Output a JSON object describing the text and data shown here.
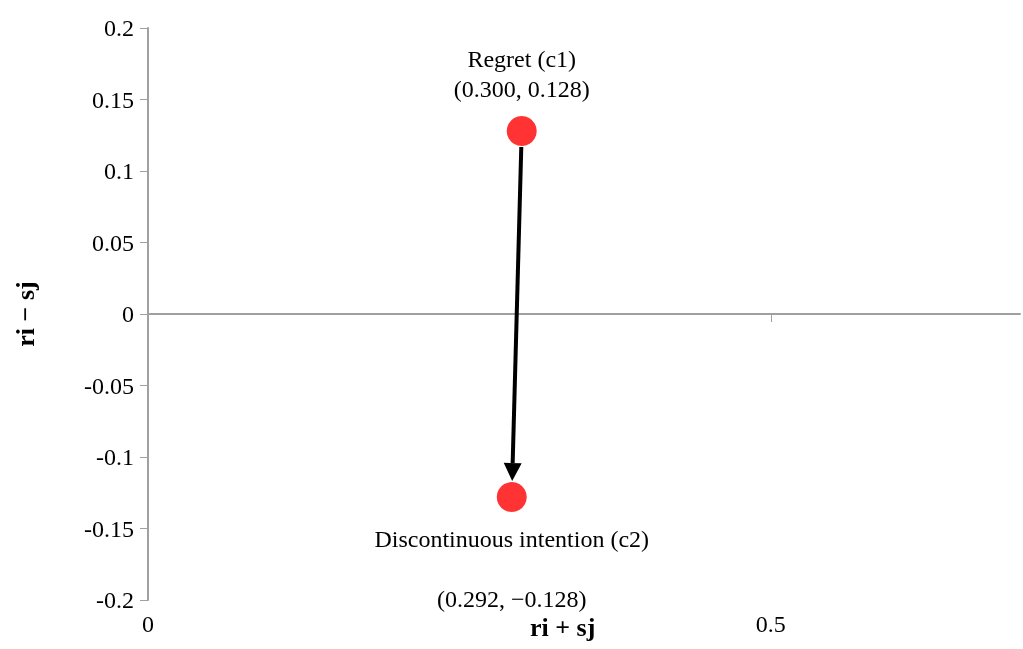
{
  "chart_data": {
    "type": "scatter",
    "xlabel": "ri + sj",
    "ylabel": "ri − sj",
    "x": [
      0.3,
      0.292
    ],
    "values": [
      0.128,
      -0.128
    ],
    "color": "#ff0000",
    "marker": "circle",
    "xlim": [
      0,
      0.7
    ],
    "xticks": [
      0,
      0.5
    ],
    "ylim": [
      -0.2,
      0.2
    ],
    "yticks": [
      {
        "value": -0.2,
        "label": "-0.2"
      },
      {
        "value": -0.15,
        "label": "-0.15"
      },
      {
        "value": -0.1,
        "label": "-0.1"
      },
      {
        "value": -0.05,
        "label": "-0.05"
      },
      0,
      0.05,
      0.1,
      0.15,
      0.2
    ],
    "value_labels": [
      "(0.300, 0.128)",
      "(0.292, −0.128)"
    ],
    "annotations": [
      {
        "text": "Regret (c1)",
        "x": 0.3,
        "y": 0.128
      },
      {
        "text": "Discontinuous intention (c2)",
        "x": 0.292,
        "y": -0.128
      }
    ]
  }
}
